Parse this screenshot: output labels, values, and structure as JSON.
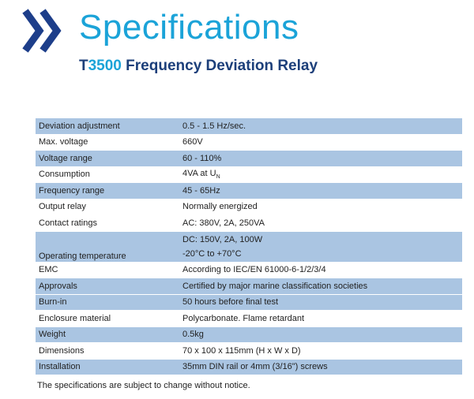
{
  "header": {
    "title": "Specifications",
    "subtitle": {
      "prefix": "T",
      "model": "3500",
      "name": "Frequency Deviation Relay"
    }
  },
  "table": {
    "rows": [
      {
        "label": "Deviation adjustment",
        "value": "0.5 - 1.5 Hz/sec."
      },
      {
        "label": "Max. voltage",
        "value": "660V"
      },
      {
        "label": "Voltage range",
        "value": "60 - 110%"
      },
      {
        "label": "Consumption",
        "value": "4VA at U",
        "subscript": "N"
      },
      {
        "label": "Frequency range",
        "value": "45 - 65Hz"
      },
      {
        "label": "Output relay",
        "value": "Normally energized"
      },
      {
        "label": "Contact ratings",
        "value": "AC: 380V, 2A, 250VA"
      },
      {
        "label": "Operating temperature",
        "lines": [
          "DC: 150V, 2A, 100W",
          "-20°C to +70°C"
        ]
      },
      {
        "label": "EMC",
        "value": "According to IEC/EN 61000-6-1/2/3/4"
      },
      {
        "label": "Approvals",
        "value": "Certified by major marine classification societies"
      },
      {
        "label": "Burn-in",
        "value": "50 hours before final test"
      },
      {
        "label": "Enclosure material",
        "value": "Polycarbonate. Flame retardant"
      },
      {
        "label": "Weight",
        "value": "0.5kg"
      },
      {
        "label": "Dimensions",
        "value": "70 x 100 x 115mm (H x W x D)"
      },
      {
        "label": "Installation",
        "value": "35mm DIN rail or 4mm (3/16\") screws"
      }
    ]
  },
  "footer": "The specifications are subject to change without notice."
}
